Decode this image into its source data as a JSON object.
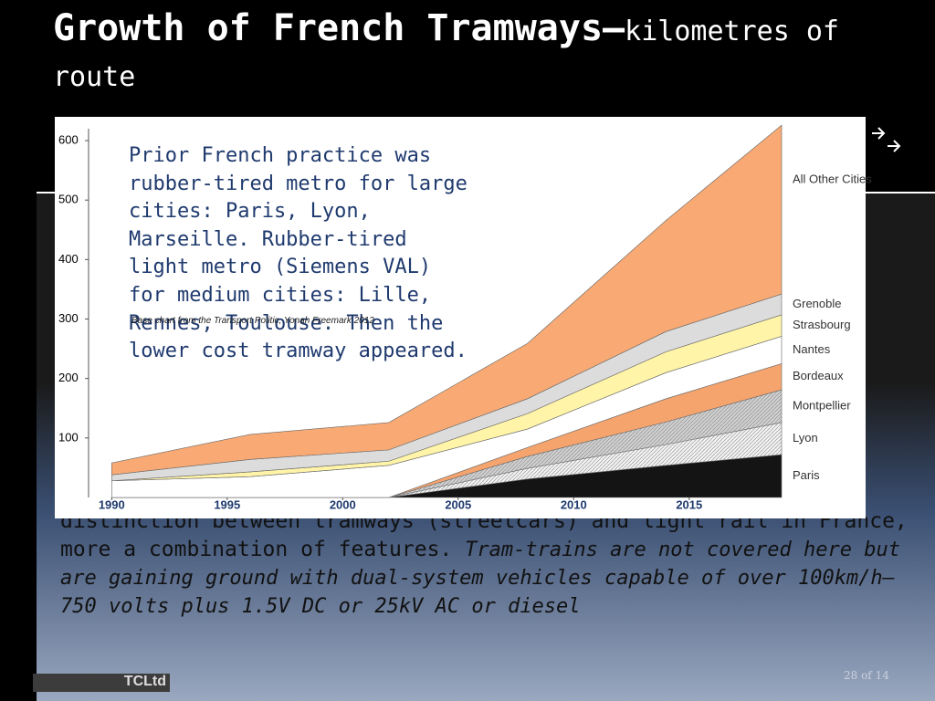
{
  "slide": {
    "title": "Growth of French Tramways—",
    "subtitle": "kilometres of route",
    "note": "Prior French practice was rubber-tired metro for large cities: Paris, Lyon, Marseille. Rubber-tired light metro (Siemens VAL) for medium cities: Lille, Rennes, Toulouse. Then the lower cost tramway appeared.",
    "source": "Base chart from the Transport Politic, Yonah Freemark 2012",
    "body": "distinction between tramways (streetcars) and light rail in France, more a combination of features.",
    "body_italic": "Tram-trains are not covered here but are gaining ground with dual-system vehicles capable of over 100km/h— 750 volts plus 1.5V DC or 25kV AC or diesel",
    "page_number": "28 of 14",
    "logo": "TCLtd"
  },
  "chart_data": {
    "type": "stacked-area",
    "x": [
      1990,
      1996,
      2002,
      2008,
      2014,
      2019
    ],
    "xlim": [
      1989,
      2019
    ],
    "xticks": [
      1990,
      1995,
      2000,
      2005,
      2010,
      2015
    ],
    "ylim": [
      0,
      620
    ],
    "yticks": [
      100,
      200,
      300,
      400,
      500,
      600
    ],
    "series": [
      {
        "name": "Paris",
        "color": "#141414",
        "values": [
          0,
          0,
          0,
          31,
          54,
          72
        ]
      },
      {
        "name": "Lyon",
        "color": "#f2f2f2",
        "values": [
          0,
          0,
          0,
          18,
          35,
          54
        ]
      },
      {
        "name": "Montpellier",
        "color": "#cfcfcf",
        "values": [
          0,
          0,
          0,
          20,
          38,
          55
        ]
      },
      {
        "name": "Bordeaux",
        "color": "#f6a46e",
        "values": [
          0,
          0,
          0,
          15,
          39,
          44
        ]
      },
      {
        "name": "Nantes",
        "color": "#ffffff",
        "values": [
          28,
          35,
          54,
          31,
          44,
          46
        ]
      },
      {
        "name": "Strasbourg",
        "color": "#fff4a8",
        "values": [
          0,
          8,
          7,
          26,
          35,
          36
        ]
      },
      {
        "name": "Grenoble",
        "color": "#dcdcdc",
        "values": [
          10,
          21,
          19,
          25,
          34,
          35
        ]
      },
      {
        "name": "All Other Cities",
        "color": "#f9aa74",
        "values": [
          20,
          42,
          46,
          93,
          187,
          284
        ]
      }
    ]
  }
}
